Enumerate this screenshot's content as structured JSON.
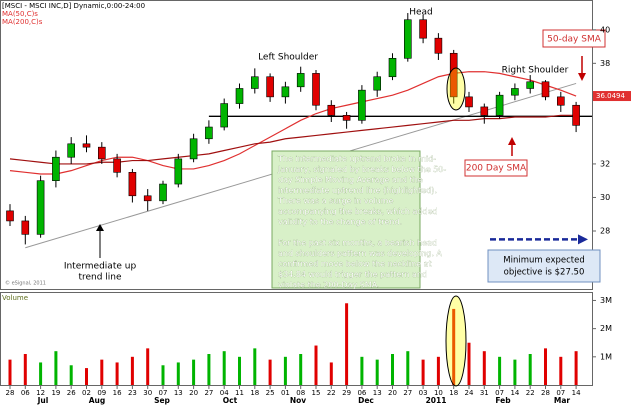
{
  "chart_data": {
    "type": "candlestick",
    "title": "[MSCI - MSCI INC,D] Dynamic,0:00-24:00",
    "categories": [
      "28",
      "06",
      "12",
      "19",
      "26",
      "02",
      "09",
      "16",
      "23",
      "30",
      "07",
      "13",
      "20",
      "27",
      "04",
      "11",
      "18",
      "25",
      "01",
      "08",
      "15",
      "22",
      "29",
      "06",
      "13",
      "20",
      "27",
      "03",
      "10",
      "18",
      "24",
      "31",
      "07",
      "14",
      "22",
      "28",
      "07",
      "14"
    ],
    "months": [
      "Jul",
      "Aug",
      "Sep",
      "Oct",
      "Nov",
      "Dec",
      "2011",
      "Feb",
      "Mar"
    ],
    "open": [
      29.2,
      28.6,
      27.8,
      31.0,
      32.4,
      33.2,
      33.0,
      32.3,
      31.5,
      30.1,
      29.8,
      30.8,
      32.3,
      33.5,
      34.2,
      35.6,
      36.5,
      37.2,
      36.0,
      36.6,
      37.4,
      35.5,
      34.9,
      34.6,
      36.4,
      37.2,
      38.3,
      40.6,
      39.5,
      38.6,
      36.0,
      35.4,
      34.9,
      36.1,
      36.5,
      36.9,
      36.0,
      35.5
    ],
    "high": [
      29.6,
      28.9,
      31.3,
      32.8,
      33.6,
      33.7,
      33.3,
      32.6,
      31.7,
      30.5,
      31.0,
      32.6,
      33.8,
      34.6,
      35.9,
      36.8,
      37.7,
      37.4,
      36.9,
      37.8,
      37.6,
      35.8,
      35.1,
      36.7,
      37.5,
      38.6,
      41.0,
      40.9,
      39.8,
      38.8,
      36.3,
      35.6,
      36.3,
      36.8,
      37.3,
      37.0,
      36.3,
      35.7
    ],
    "low": [
      28.3,
      27.2,
      27.6,
      30.6,
      32.0,
      32.7,
      32.0,
      31.2,
      29.7,
      29.2,
      29.6,
      30.6,
      32.1,
      33.2,
      34.0,
      35.3,
      36.2,
      35.7,
      35.6,
      36.3,
      35.2,
      34.5,
      34.1,
      34.4,
      36.0,
      37.0,
      38.1,
      39.2,
      38.2,
      35.6,
      35.1,
      34.4,
      34.7,
      35.8,
      36.2,
      35.8,
      35.1,
      33.9
    ],
    "close": [
      28.6,
      27.8,
      31.0,
      32.4,
      33.2,
      33.0,
      32.3,
      31.5,
      30.1,
      29.8,
      30.8,
      32.3,
      33.5,
      34.2,
      35.6,
      36.5,
      37.2,
      36.0,
      36.6,
      37.4,
      35.5,
      34.9,
      34.6,
      36.4,
      37.2,
      38.3,
      40.6,
      39.5,
      38.6,
      36.0,
      35.4,
      34.9,
      36.1,
      36.5,
      36.9,
      36.0,
      35.5,
      34.3
    ],
    "up_color": "#00b400",
    "down_color": "#e00000",
    "ylim": [
      24.6,
      41.3
    ],
    "yticks": [
      28,
      30,
      32,
      38,
      40
    ],
    "series": [
      {
        "name": "MA(50,C)s",
        "color": "#e03030",
        "values": [
          31.6,
          31.5,
          31.4,
          31.4,
          31.6,
          31.9,
          32.2,
          32.4,
          32.4,
          32.2,
          31.9,
          31.7,
          31.7,
          31.9,
          32.2,
          32.6,
          33.1,
          33.6,
          34.1,
          34.6,
          35.0,
          35.3,
          35.5,
          35.7,
          35.9,
          36.1,
          36.4,
          36.8,
          37.2,
          37.4,
          37.5,
          37.5,
          37.4,
          37.2,
          37.0,
          36.7,
          36.4,
          36.0494
        ]
      },
      {
        "name": "MA(200,C)s",
        "color": "#a01010",
        "values": [
          32.3,
          32.2,
          32.1,
          32.0,
          32.0,
          32.0,
          32.1,
          32.1,
          32.2,
          32.2,
          32.3,
          32.4,
          32.5,
          32.6,
          32.8,
          33.0,
          33.2,
          33.3,
          33.5,
          33.6,
          33.7,
          33.8,
          33.9,
          34.0,
          34.1,
          34.2,
          34.3,
          34.4,
          34.5,
          34.6,
          34.6,
          34.7,
          34.7,
          34.8,
          34.8,
          34.8,
          34.9,
          34.9
        ]
      }
    ],
    "neckline": 34.84,
    "trendline": [
      27.0,
      36.8
    ],
    "target": 27.5,
    "volume": {
      "label": "Volume",
      "values": [
        900000,
        1100000,
        800000,
        1200000,
        700000,
        600000,
        900000,
        800000,
        1000000,
        1300000,
        700000,
        800000,
        900000,
        1100000,
        1200000,
        1000000,
        1300000,
        900000,
        1000000,
        1100000,
        1400000,
        800000,
        2900000,
        1000000,
        900000,
        1100000,
        1200000,
        900000,
        1000000,
        2700000,
        1500000,
        1200000,
        1000000,
        900000,
        1100000,
        1300000,
        1000000,
        1200000
      ],
      "ylim": [
        0,
        3300000
      ],
      "yticks": [
        {
          "value": 1000000,
          "label": "1M"
        },
        {
          "value": 2000000,
          "label": "2M"
        },
        {
          "value": 3000000,
          "label": "3M"
        }
      ]
    },
    "annotations": {
      "head": "Head",
      "left_shoulder": "Left Shoulder",
      "right_shoulder": "Right Shoulder",
      "sma50": "50-day SMA",
      "sma200": "200 Day SMA",
      "trend": [
        "Intermediate up",
        "trend line"
      ],
      "commentary": [
        "The intermediate uptrend broke in mid-",
        "January, signaled by breaks below the 50-",
        "day Simple Moving Average and the",
        "intermediate uptrend line (highlighted).",
        "There was a surge in volume",
        "accompanying the breaks, which added",
        "validity to the change of trend.",
        "For the past six months, a bearish head",
        "and shoulders pattern was developing. A",
        "confirmed move below the neckline at",
        "$34.84 would trigger the pattern and",
        "violate the 200-Day SMA."
      ],
      "objective": [
        "Minimum expected",
        "objective is $27.50"
      ],
      "copyright": "© eSignal, 2011"
    }
  }
}
